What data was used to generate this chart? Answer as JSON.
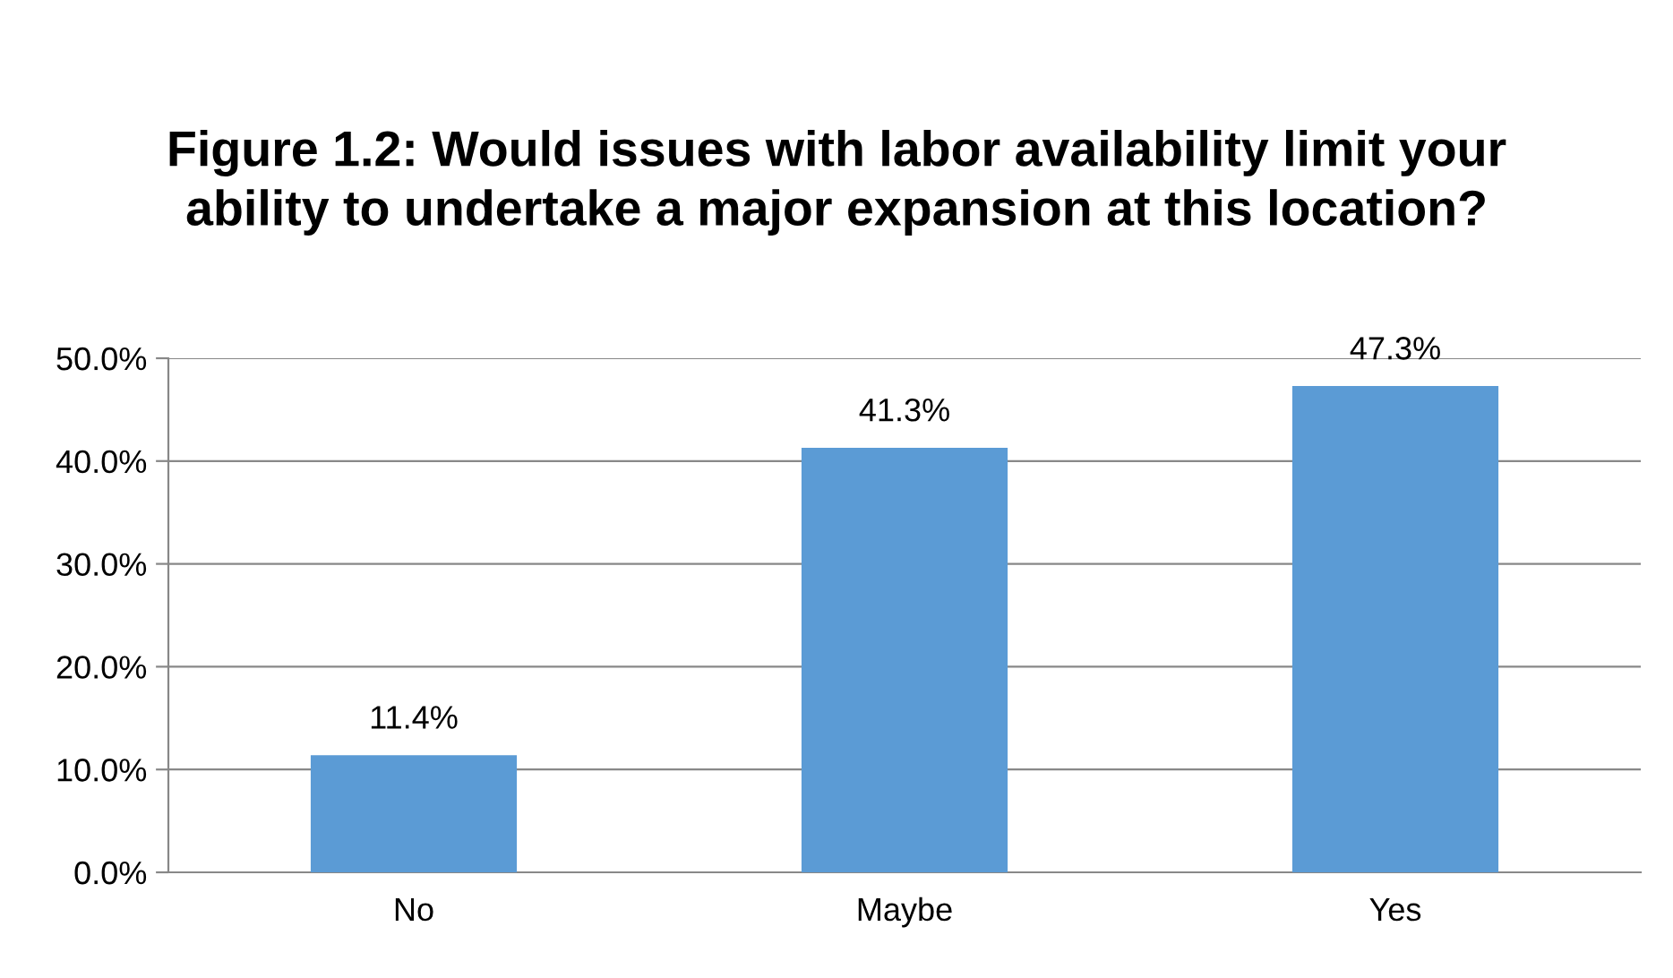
{
  "chart_data": {
    "type": "bar",
    "title": "Figure 1.2: Would issues with labor availability limit your ability to undertake a major expansion at this location?",
    "categories": [
      "No",
      "Maybe",
      "Yes"
    ],
    "values": [
      11.4,
      41.3,
      47.3
    ],
    "value_labels": [
      "11.4%",
      "41.3%",
      "47.3%"
    ],
    "color": "#5b9bd5",
    "ylim": [
      0,
      50
    ],
    "yticks": [
      {
        "value": 0,
        "label": "0.0%"
      },
      {
        "value": 10,
        "label": "10.0%"
      },
      {
        "value": 20,
        "label": "20.0%"
      },
      {
        "value": 30,
        "label": "30.0%"
      },
      {
        "value": 40,
        "label": "40.0%"
      },
      {
        "value": 50,
        "label": "50.0%"
      }
    ],
    "grid": "y",
    "legend": false
  }
}
